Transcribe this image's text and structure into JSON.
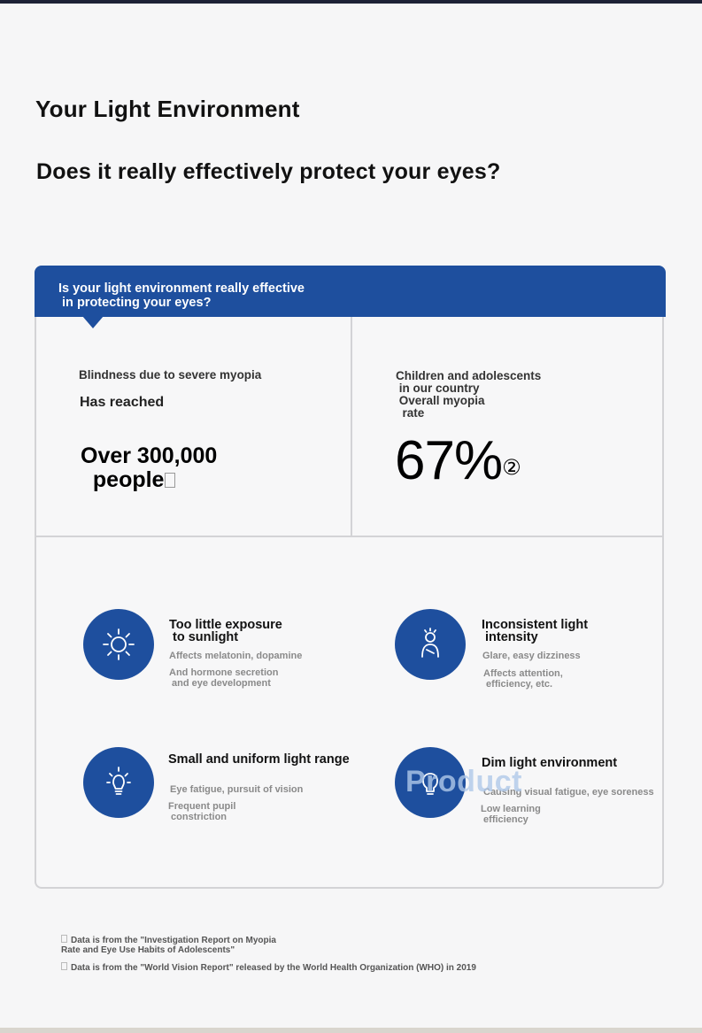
{
  "header": {
    "title": "Your Light Environment",
    "subtitle": "Does it really effectively protect your eyes?"
  },
  "banner": {
    "text": "Is your light environment really effective\n in protecting your eyes?"
  },
  "stats": [
    {
      "label": "Blindness due to severe myopia",
      "sub": "Has reached",
      "value": "Over 300,000\n  people"
    },
    {
      "label": "Children and adolescents\n in our country\n Overall myopia\n  rate",
      "value": "67%",
      "ref": "②"
    }
  ],
  "features": [
    {
      "icon": "sun-icon",
      "title": "Too little exposure\n to sunlight",
      "desc1": "Affects melatonin, dopamine",
      "desc2": "And hormone secretion\n and eye development"
    },
    {
      "icon": "person-light-icon",
      "title": "Inconsistent light\n intensity",
      "desc1": "Glare, easy dizziness",
      "desc2": "Affects attention,\n efficiency, etc."
    },
    {
      "icon": "light-bulb-icon",
      "title": "Small and uniform light range",
      "desc1": "Eye fatigue, pursuit of vision",
      "desc2": "Frequent pupil\n constriction"
    },
    {
      "icon": "dim-light-icon",
      "title": "Dim light environment",
      "desc1": "Causing visual fatigue, eye soreness",
      "desc2": "Low learning\n efficiency"
    }
  ],
  "watermark": "Product",
  "footnotes": [
    "Data is from the \"Investigation Report on Myopia\nRate and Eye Use Habits of Adolescents\"",
    "Data is from the \"World Vision Report\" released by the World Health Organization (WHO) in 2019"
  ],
  "colors": {
    "accent": "#1e4f9e",
    "background": "#f6f6f7",
    "border": "#d3d3d6"
  }
}
